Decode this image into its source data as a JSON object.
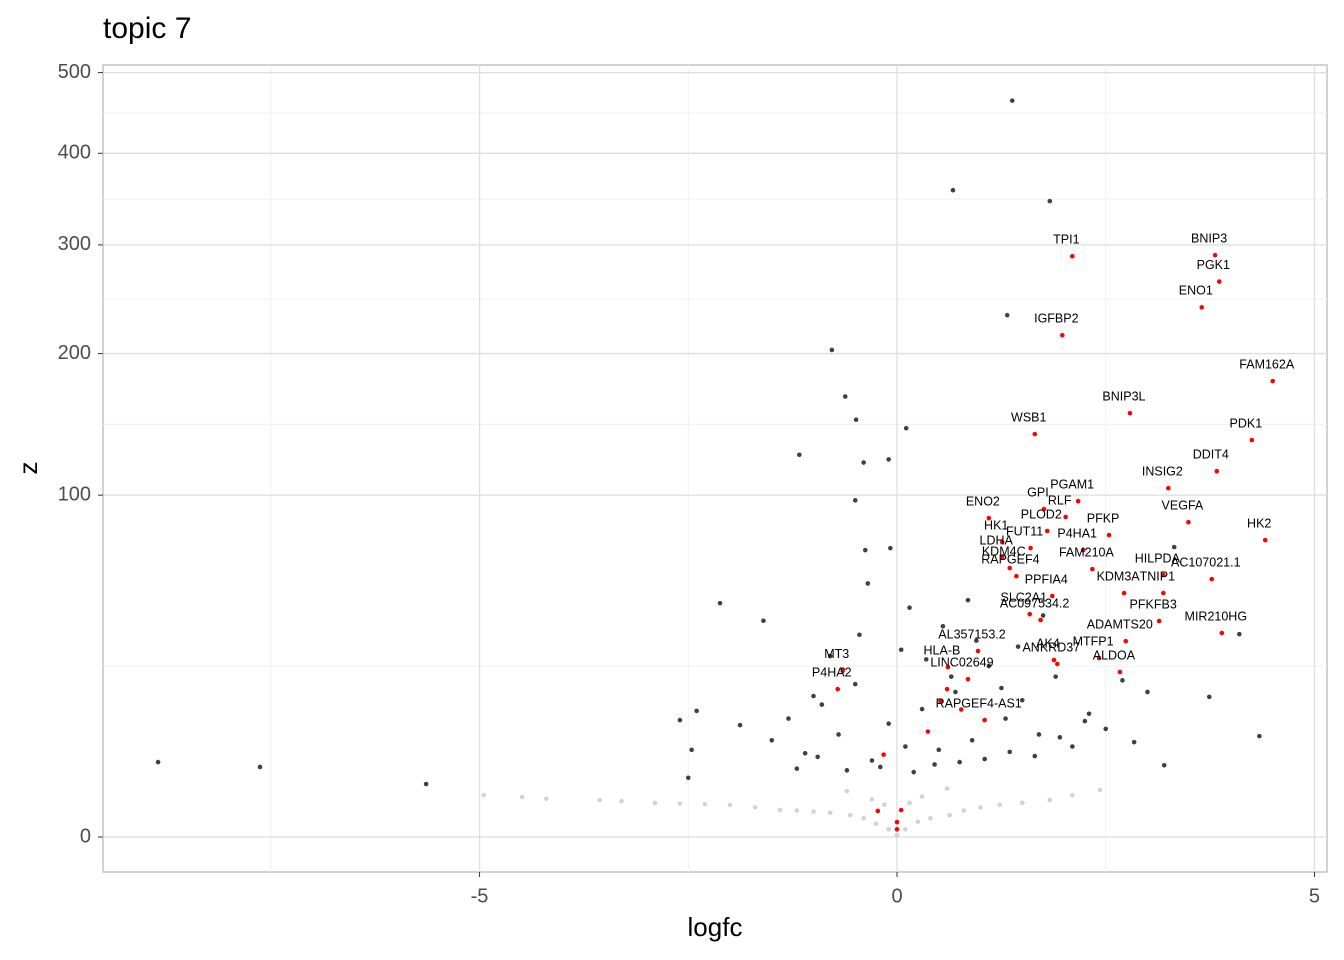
{
  "chart_data": {
    "type": "scatter",
    "title": "topic 7",
    "x_label": "logfc",
    "y_label": "z",
    "y_scale": "sqrt",
    "grid": true,
    "minor_grid": true,
    "xlim": [
      -9.51,
      5.15
    ],
    "ylim": [
      0,
      510
    ],
    "xticks": [
      -5,
      0,
      5
    ],
    "yticks": [
      0,
      100,
      200,
      300,
      400,
      500
    ],
    "series": [
      {
        "color": "#d3d3d3",
        "x": [
          -4.95,
          -4.49,
          -4.2,
          -3.56,
          -3.3,
          -2.9,
          -2.6,
          -2.3,
          -2.0,
          -1.7,
          -1.4,
          -1.2,
          -1.0,
          -0.8,
          -0.56,
          -0.4,
          -0.25,
          -0.1,
          0,
          0.1,
          0.25,
          0.4,
          0.63,
          0.8,
          1.0,
          1.23,
          1.5,
          1.83,
          2.1,
          2.43,
          -0.3,
          0.3,
          -0.6,
          0.6,
          -0.15,
          0.15
        ],
        "y": [
          1.5,
          1.37,
          1.25,
          1.17,
          1.1,
          0.99,
          0.95,
          0.92,
          0.88,
          0.75,
          0.62,
          0.6,
          0.55,
          0.5,
          0.41,
          0.3,
          0.15,
          0.05,
          0.003,
          0.05,
          0.2,
          0.3,
          0.41,
          0.6,
          0.75,
          0.88,
          1.0,
          1.17,
          1.5,
          1.9,
          1.2,
          1.4,
          1.8,
          2.0,
          0.9,
          1.0
        ]
      },
      {
        "color": "#000000",
        "x": [
          1.38,
          0.67,
          1.83,
          1.32,
          -0.78,
          -0.62,
          -0.49,
          0.11,
          -1.17,
          -0.4,
          -0.1,
          -0.5,
          -8.85,
          -7.63,
          -5.64,
          -2.12,
          4.34,
          3.74,
          4.1,
          3.2,
          2.84,
          3.32,
          -0.08,
          -0.38,
          -2.6,
          -2.46,
          -2.5,
          -2.4,
          -1.88,
          -1.5,
          -1.3,
          -1.1,
          -0.9,
          -0.7,
          -0.5,
          -0.3,
          -0.1,
          0.1,
          0.3,
          0.5,
          0.7,
          0.9,
          1.1,
          1.3,
          1.5,
          1.7,
          1.9,
          2.1,
          2.3,
          2.5,
          -1.2,
          -0.95,
          -0.6,
          -0.2,
          0.2,
          0.45,
          0.75,
          1.05,
          1.35,
          1.65,
          1.95,
          2.25,
          -0.8,
          -0.45,
          0.05,
          0.35,
          0.65,
          0.95,
          1.25,
          -1.0,
          -0.65,
          0.15,
          0.55,
          1.45,
          2.7,
          3.0,
          -1.6,
          -0.35,
          0.85,
          1.75
        ],
        "y": [
          464,
          358,
          346,
          233,
          203,
          166,
          149,
          143,
          125,
          120,
          122,
          97,
          4.8,
          4.2,
          2.4,
          46.8,
          8.7,
          16.8,
          35.2,
          4.4,
          7.7,
          71.9,
          71.4,
          70.4,
          11.7,
          6.5,
          3.0,
          13.6,
          10.7,
          8,
          12,
          6,
          15,
          9,
          20,
          5,
          11,
          7,
          14,
          6.5,
          18,
          8,
          25,
          12,
          16,
          9,
          22,
          7,
          13,
          10,
          4,
          5.5,
          3.8,
          4.2,
          3.6,
          4.5,
          4.8,
          5.2,
          6.2,
          5.6,
          8.5,
          11.5,
          28,
          35,
          30,
          27,
          22,
          33,
          19,
          17,
          24,
          45,
          38,
          31,
          21,
          18,
          40,
          55,
          48,
          42
        ]
      },
      {
        "color": "#ff0000",
        "x": [
          3.81,
          3.86,
          3.65,
          2.1,
          1.98,
          4.5,
          1.65,
          2.79,
          4.25,
          3.83,
          3.25,
          3.49,
          2.17,
          1.76,
          1.1,
          2.02,
          2.54,
          2.34,
          1.26,
          1.8,
          1.26,
          2.23,
          3.19,
          4.41,
          1.35,
          1.6,
          3.77,
          1.59,
          1.43,
          1.86,
          2.72,
          3.19,
          0.97,
          1.72,
          1.88,
          3.14,
          3.89,
          -0.65,
          0.61,
          1.92,
          2.74,
          0.85,
          2.42,
          2.67,
          -0.71,
          1.05,
          -0.23,
          0.05,
          0,
          0,
          0.6,
          0.52,
          0.77,
          0.37,
          -0.16
        ],
        "y": [
          289.6,
          264,
          240,
          288.6,
          215.4,
          177.8,
          138.9,
          153.7,
          134.8,
          114.5,
          104.1,
          84.8,
          96.5,
          92.0,
          87.0,
          87.6,
          78.0,
          61.4,
          74.4,
          80.1,
          67.0,
          70.4,
          58.7,
          75.4,
          61.9,
          71.4,
          56.9,
          42.5,
          58.2,
          49.7,
          50.9,
          50.9,
          29.6,
          40.3,
          26.8,
          39.9,
          35.6,
          23.6,
          24.7,
          25.6,
          32.8,
          21.3,
          27.4,
          23.3,
          18.7,
          11.7,
          0.58,
          0.62,
          0.19,
          0.05,
          18.7,
          15.8,
          13.9,
          9.5,
          5.8
        ],
        "labels": [
          "BNIP3",
          "PGK1",
          "ENO1",
          "TPI1",
          "IGFBP2",
          "FAM162A",
          "WSB1",
          "BNIP3L",
          "PDK1",
          "DDIT4",
          "INSIG2",
          "VEGFA",
          "PGAM1",
          "GPI",
          "ENO2",
          "RLF",
          "PFKP",
          "FAM210A",
          "HK1",
          "PLOD2",
          "LDHA",
          "P4HA1",
          "HILPDA",
          "HK2",
          "KDM4C",
          "FUT11",
          "AC107021.1",
          "SLC2A1",
          "RAPGEF4",
          "PPFIA4",
          "KDM3A",
          "TNIP1",
          "AL357153.2",
          "AC097534.2",
          "AK4",
          "PFKFB3",
          "MIR210HG",
          "MT3",
          "HLA-B",
          "ANKRD37",
          "ADAMTS20",
          "LINC02649",
          "MTFP1",
          "ALDOA",
          "P4HA2",
          "RAPGEF4-AS1",
          null,
          null,
          null,
          null,
          null,
          null,
          null,
          null,
          null
        ]
      }
    ]
  }
}
